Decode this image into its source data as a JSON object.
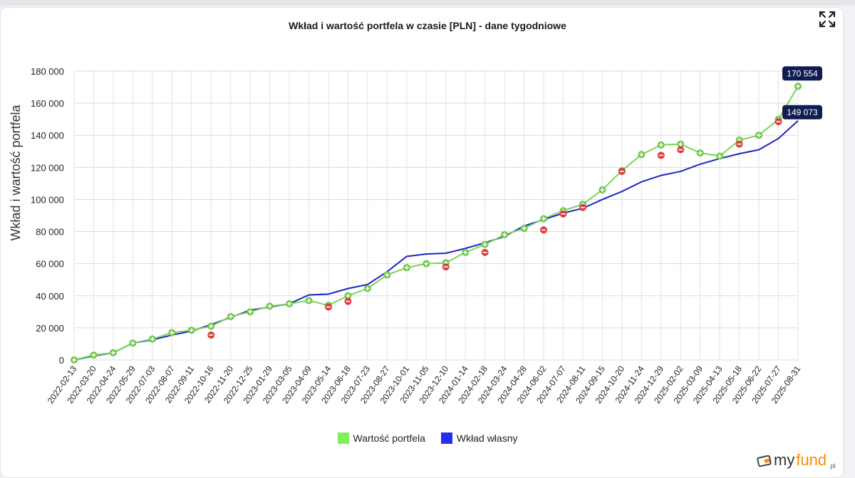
{
  "chart_data": {
    "type": "line",
    "title": "Wkład i wartość portfela w czasie [PLN] - dane tygodniowe",
    "xlabel": "",
    "ylabel": "Wkład i wartość portfela",
    "ylim": [
      0,
      180000
    ],
    "yticks": [
      "0",
      "20 000",
      "40 000",
      "60 000",
      "80 000",
      "100 000",
      "120 000",
      "140 000",
      "160 000",
      "180 000"
    ],
    "categories": [
      "2022-02-13",
      "2022-03-20",
      "2022-04-24",
      "2022-05-29",
      "2022-07-03",
      "2022-08-07",
      "2022-09-11",
      "2022-10-16",
      "2022-11-20",
      "2022-12-25",
      "2023-01-29",
      "2023-03-05",
      "2023-04-09",
      "2023-05-14",
      "2023-06-18",
      "2023-07-23",
      "2023-08-27",
      "2023-10-01",
      "2023-11-05",
      "2023-12-10",
      "2024-01-14",
      "2024-02-18",
      "2024-03-24",
      "2024-04-28",
      "2024-06-02",
      "2024-07-07",
      "2024-08-11",
      "2024-09-15",
      "2024-10-20",
      "2024-11-24",
      "2024-12-29",
      "2025-02-02",
      "2025-03-09",
      "2025-04-13",
      "2025-05-18",
      "2025-06-22",
      "2025-07-27",
      "2025-08-31"
    ],
    "series": [
      {
        "name": "Wartość portfela",
        "color": "#7bd35a",
        "values": [
          0,
          3000,
          4500,
          10500,
          13000,
          17000,
          18500,
          21000,
          27000,
          30000,
          33500,
          35000,
          37000,
          34000,
          40000,
          44500,
          53000,
          57500,
          60000,
          60500,
          67000,
          72000,
          78000,
          82000,
          88000,
          93000,
          97000,
          106000,
          118000,
          128000,
          134000,
          134500,
          129000,
          127000,
          137000,
          140000,
          150000,
          170554
        ],
        "end_label": "170 554"
      },
      {
        "name": "Wkład własny",
        "color": "#1f23c4",
        "values": [
          0,
          2500,
          4500,
          10500,
          12500,
          15500,
          18000,
          22000,
          26500,
          31000,
          33000,
          35000,
          40500,
          41000,
          44500,
          47000,
          55000,
          64500,
          66000,
          66500,
          69500,
          73000,
          77000,
          83500,
          87500,
          91500,
          94500,
          100000,
          105000,
          111000,
          115000,
          117500,
          122000,
          125500,
          128500,
          131000,
          138000,
          149073
        ],
        "end_label": "149 073"
      }
    ],
    "markers": {
      "up_color": "#6cc644",
      "down_color": "#d94040",
      "down_points": [
        {
          "category": "2022-10-16",
          "value": 15500
        },
        {
          "category": "2023-05-14",
          "value": 33000
        },
        {
          "category": "2023-06-18",
          "value": 36500
        },
        {
          "category": "2023-12-10",
          "value": 58000
        },
        {
          "category": "2024-02-18",
          "value": 67000
        },
        {
          "category": "2024-06-02",
          "value": 81000
        },
        {
          "category": "2024-07-07",
          "value": 91000
        },
        {
          "category": "2024-08-11",
          "value": 95000
        },
        {
          "category": "2024-10-20",
          "value": 117500
        },
        {
          "category": "2024-12-29",
          "value": 127500
        },
        {
          "category": "2025-02-02",
          "value": 131000
        },
        {
          "category": "2025-05-18",
          "value": 134500
        },
        {
          "category": "2025-07-27",
          "value": 148500
        }
      ]
    },
    "legend_position": "bottom"
  },
  "logo": {
    "my": "my",
    "fund": "fund",
    "suffix": ".pl"
  }
}
